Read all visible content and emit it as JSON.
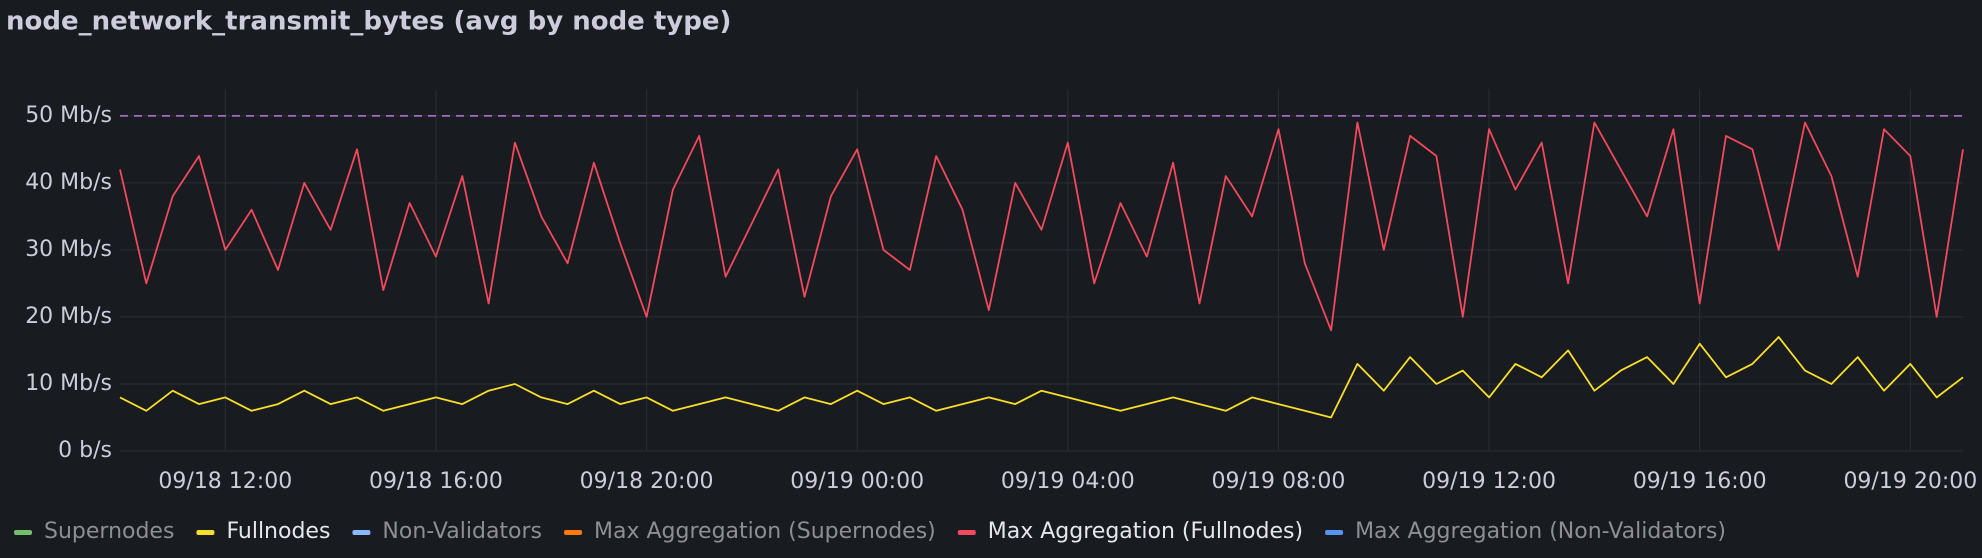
{
  "chart_data": {
    "type": "line",
    "title": "node_network_transmit_bytes (avg by node type)",
    "x": [
      "09/18 10:00",
      "09/18 10:30",
      "09/18 11:00",
      "09/18 11:30",
      "09/18 12:00",
      "09/18 12:30",
      "09/18 13:00",
      "09/18 13:30",
      "09/18 14:00",
      "09/18 14:30",
      "09/18 15:00",
      "09/18 15:30",
      "09/18 16:00",
      "09/18 16:30",
      "09/18 17:00",
      "09/18 17:30",
      "09/18 18:00",
      "09/18 18:30",
      "09/18 19:00",
      "09/18 19:30",
      "09/18 20:00",
      "09/18 20:30",
      "09/18 21:00",
      "09/18 21:30",
      "09/18 22:00",
      "09/18 22:30",
      "09/18 23:00",
      "09/18 23:30",
      "09/19 00:00",
      "09/19 00:30",
      "09/19 01:00",
      "09/19 01:30",
      "09/19 02:00",
      "09/19 02:30",
      "09/19 03:00",
      "09/19 03:30",
      "09/19 04:00",
      "09/19 04:30",
      "09/19 05:00",
      "09/19 05:30",
      "09/19 06:00",
      "09/19 06:30",
      "09/19 07:00",
      "09/19 07:30",
      "09/19 08:00",
      "09/19 08:30",
      "09/19 09:00",
      "09/19 09:30",
      "09/19 10:00",
      "09/19 10:30",
      "09/19 11:00",
      "09/19 11:30",
      "09/19 12:00",
      "09/19 12:30",
      "09/19 13:00",
      "09/19 13:30",
      "09/19 14:00",
      "09/19 14:30",
      "09/19 15:00",
      "09/19 15:30",
      "09/19 16:00",
      "09/19 16:30",
      "09/19 17:00",
      "09/19 17:30",
      "09/19 18:00",
      "09/19 18:30",
      "09/19 19:00",
      "09/19 19:30",
      "09/19 20:00",
      "09/19 20:30",
      "09/19 21:00"
    ],
    "xlim": [
      "09/18 10:00",
      "09/19 21:00"
    ],
    "xticks": [
      "09/18 12:00",
      "09/18 16:00",
      "09/18 20:00",
      "09/19 00:00",
      "09/19 04:00",
      "09/19 08:00",
      "09/19 12:00",
      "09/19 16:00",
      "09/19 20:00"
    ],
    "ylim": [
      0,
      54
    ],
    "yticks": [
      {
        "value": 0,
        "label": "0 b/s"
      },
      {
        "value": 10,
        "label": "10 Mb/s"
      },
      {
        "value": 20,
        "label": "20 Mb/s"
      },
      {
        "value": 30,
        "label": "30 Mb/s"
      },
      {
        "value": 40,
        "label": "40 Mb/s"
      },
      {
        "value": 50,
        "label": "50 Mb/s"
      }
    ],
    "grid": true,
    "threshold": {
      "value": 50,
      "color": "#b877d9"
    },
    "legend": "bottom",
    "series": [
      {
        "name": "Supernodes",
        "color": "#73bf69",
        "hidden": true
      },
      {
        "name": "Fullnodes",
        "color": "#fade2a",
        "values": [
          8,
          6,
          9,
          7,
          8,
          6,
          7,
          9,
          7,
          8,
          6,
          7,
          8,
          7,
          9,
          10,
          8,
          7,
          9,
          7,
          8,
          6,
          7,
          8,
          7,
          6,
          8,
          7,
          9,
          7,
          8,
          6,
          7,
          8,
          7,
          9,
          8,
          7,
          6,
          7,
          8,
          7,
          6,
          8,
          7,
          6,
          5,
          13,
          9,
          14,
          10,
          12,
          8,
          13,
          11,
          15,
          9,
          12,
          14,
          10,
          16,
          11,
          13,
          17,
          12,
          10,
          14,
          9,
          13,
          8,
          11
        ]
      },
      {
        "name": "Non-Validators",
        "color": "#8ab8ff",
        "hidden": true
      },
      {
        "name": "Max Aggregation (Supernodes)",
        "color": "#ff780a",
        "hidden": true
      },
      {
        "name": "Max Aggregation (Fullnodes)",
        "color": "#f2495c",
        "values": [
          42,
          25,
          38,
          44,
          30,
          36,
          27,
          40,
          33,
          45,
          24,
          37,
          29,
          41,
          22,
          46,
          35,
          28,
          43,
          31,
          20,
          39,
          47,
          26,
          34,
          42,
          23,
          38,
          45,
          30,
          27,
          44,
          36,
          21,
          40,
          33,
          46,
          25,
          37,
          29,
          43,
          22,
          41,
          35,
          48,
          28,
          18,
          49,
          30,
          47,
          44,
          20,
          48,
          39,
          46,
          25,
          49,
          42,
          35,
          48,
          22,
          47,
          45,
          30,
          49,
          41,
          26,
          48,
          44,
          20,
          45
        ]
      },
      {
        "name": "Max Aggregation (Non-Validators)",
        "color": "#5794f2",
        "hidden": true
      }
    ]
  }
}
